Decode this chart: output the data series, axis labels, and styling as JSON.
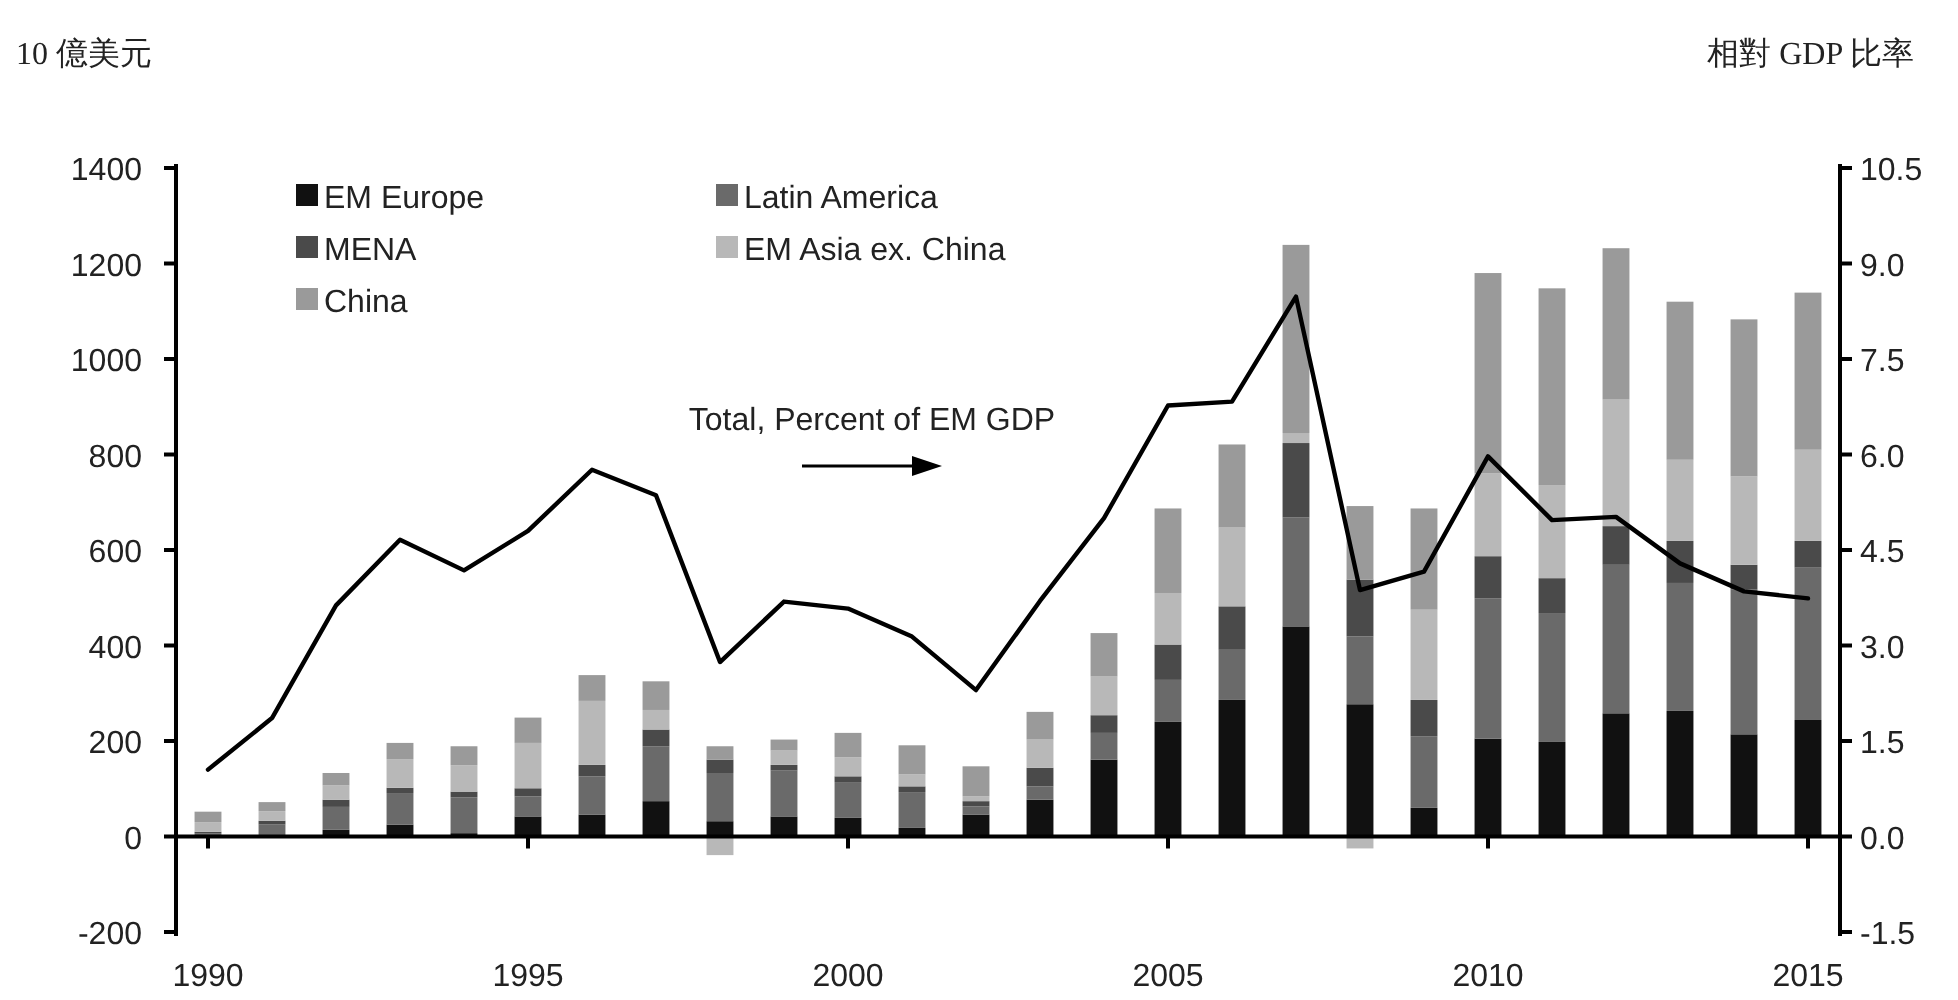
{
  "chart_data": {
    "type": "bar",
    "stacked": true,
    "ylabel": "10 億美元",
    "y2label": "相對 GDP 比率",
    "categories": [
      "1990",
      null,
      null,
      null,
      null,
      "1995",
      null,
      null,
      null,
      null,
      "2000",
      null,
      null,
      null,
      null,
      "2005",
      null,
      null,
      null,
      null,
      "2010",
      null,
      null,
      null,
      null,
      "2015"
    ],
    "series": [
      {
        "name": "EM Europe",
        "color": "#111111",
        "values": [
          2,
          null,
          14,
          25,
          7,
          42,
          46,
          74,
          32,
          42,
          39,
          18,
          46,
          77,
          161,
          240,
          286,
          440,
          277,
          60,
          205,
          198,
          258,
          263,
          214,
          244
        ]
      },
      {
        "name": "Latin America",
        "color": "#6a6a6a",
        "values": [
          5,
          25,
          48,
          66,
          75,
          42,
          80,
          115,
          101,
          96,
          75,
          75,
          17,
          28,
          56,
          88,
          105,
          228,
          142,
          150,
          294,
          270,
          311,
          268,
          303,
          319
        ]
      },
      {
        "name": "MENA",
        "color": "#4a4a4a",
        "values": [
          3,
          8,
          15,
          11,
          12,
          17,
          24,
          35,
          28,
          12,
          12,
          12,
          11,
          39,
          37,
          74,
          91,
          156,
          119,
          76,
          88,
          73,
          81,
          88,
          52,
          56
        ]
      },
      {
        "name": "EM Asia ex. China",
        "color": "#b8b8b8",
        "values": [
          20,
          20,
          30,
          60,
          55,
          95,
          134,
          41,
          -39,
          30,
          40,
          25,
          10,
          59,
          81,
          108,
          165,
          21,
          -25,
          189,
          174,
          195,
          265,
          170,
          185,
          191
        ]
      },
      {
        "name": "China",
        "color": "#9a9a9a",
        "values": [
          22,
          19,
          26,
          34,
          40,
          53,
          54,
          60,
          28,
          23,
          51,
          61,
          63,
          58,
          91,
          177,
          174,
          394,
          154,
          212,
          419,
          412,
          317,
          331,
          329,
          329
        ]
      },
      {
        "name": "Total, Percent of EM GDP",
        "type": "line",
        "axis": "y2",
        "color": "#000000",
        "values": [
          1.05,
          1.86,
          3.63,
          4.66,
          4.18,
          4.8,
          5.76,
          5.36,
          2.74,
          3.69,
          3.58,
          3.14,
          2.3,
          3.7,
          5.0,
          6.77,
          6.83,
          8.48,
          3.87,
          4.16,
          5.97,
          4.97,
          5.02,
          4.29,
          3.85,
          3.74
        ]
      }
    ],
    "ylim": [
      -200,
      1400
    ],
    "yticks": [
      -200,
      0,
      200,
      400,
      600,
      800,
      1000,
      1200,
      1400
    ],
    "y2lim": [
      -1.5,
      10.5
    ],
    "y2ticks": [
      -1.5,
      {
        "value": 0,
        "label": "0.0"
      },
      1.5,
      {
        "value": 3,
        "label": "3.0"
      },
      4.5,
      {
        "value": 6,
        "label": "6.0"
      },
      7.5,
      {
        "value": 9,
        "label": "9.0"
      },
      10.5
    ],
    "legend": "top left"
  }
}
